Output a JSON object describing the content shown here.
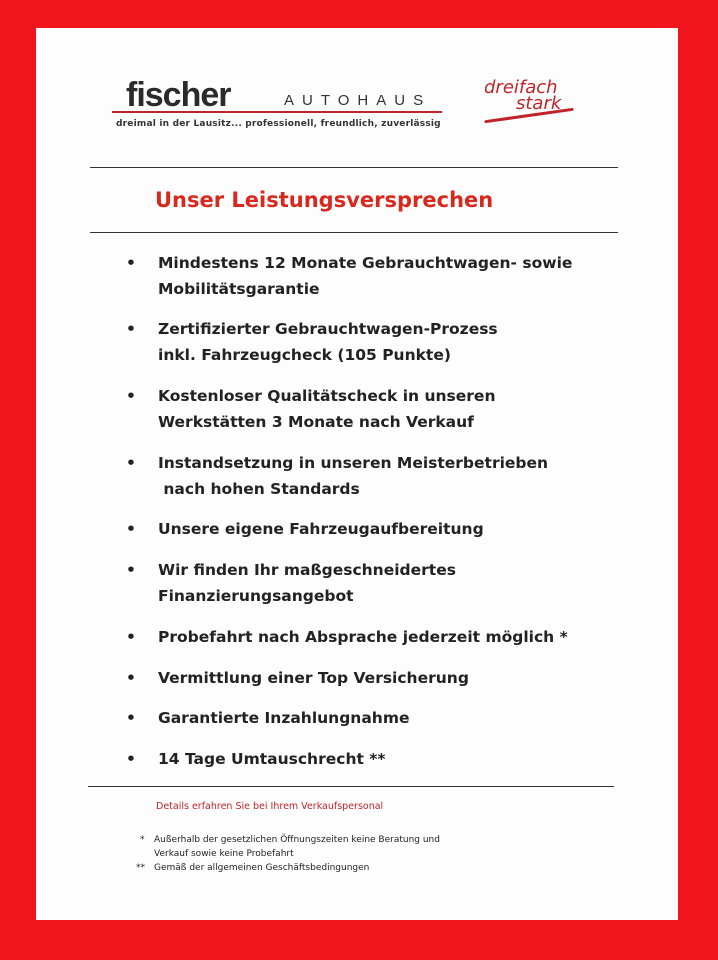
{
  "header": {
    "brand": "fischer",
    "brand_suffix": "AUTOHAUS",
    "tagline": "dreimal in der Lausitz... professionell, freundlich, zuverlässig",
    "slogan_line1": "dreifach",
    "slogan_line2": "stark"
  },
  "title": "Unser Leistungsversprechen",
  "items": [
    {
      "line1": "Mindestens 12 Monate Gebrauchtwagen- sowie",
      "line2": "Mobilitätsgarantie"
    },
    {
      "line1": "Zertifizierter Gebrauchtwagen-Prozess",
      "line2": "inkl. Fahrzeugcheck (105 Punkte)"
    },
    {
      "line1": "Kostenloser Qualitätscheck in unseren",
      "line2": "Werkstätten 3 Monate nach Verkauf"
    },
    {
      "line1": "Instandsetzung in unseren Meisterbetrieben",
      "line2": " nach hohen Standards"
    },
    {
      "line1": "Unsere eigene Fahrzeugaufbereitung",
      "line2": ""
    },
    {
      "line1": "Wir finden Ihr maßgeschneidertes",
      "line2": "Finanzierungsangebot"
    },
    {
      "line1": "Probefahrt nach Absprache jederzeit möglich *",
      "line2": ""
    },
    {
      "line1": "Vermittlung einer Top Versicherung",
      "line2": ""
    },
    {
      "line1": "Garantierte Inzahlungnahme",
      "line2": ""
    },
    {
      "line1": "14 Tage Umtauschrecht **",
      "line2": ""
    }
  ],
  "bullet": "•",
  "details": "Details erfahren Sie bei Ihrem Verkaufspersonal",
  "footnotes": [
    {
      "mark": "*",
      "text": "Außerhalb der gesetzlichen Öffnungszeiten keine Beratung und\nVerkauf sowie keine Probefahrt"
    },
    {
      "mark": "**",
      "text": "Gemäß der allgemeinen Geschäftsbedingungen"
    }
  ],
  "colors": {
    "border": "#f0141c",
    "accent": "#d9281e"
  }
}
